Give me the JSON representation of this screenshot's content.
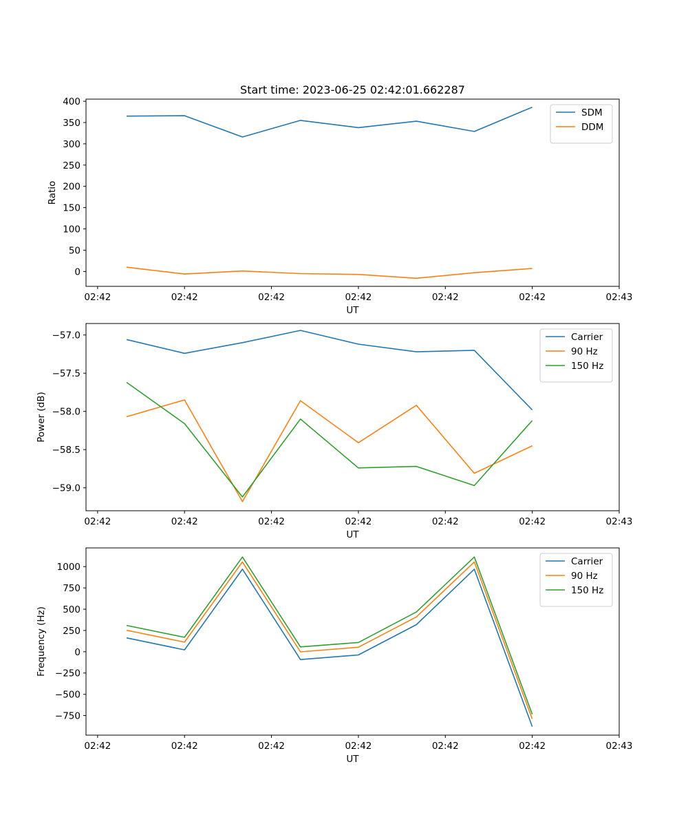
{
  "title": "Start time: 2023-06-25 02:42:01.662287",
  "colors": {
    "blue": "#1f77b4",
    "orange": "#ff7f0e",
    "green": "#2ca02c"
  },
  "chart_data": [
    {
      "type": "line",
      "ylabel": "Ratio",
      "xlabel": "UT",
      "xlim": [
        -0.2,
        9.0
      ],
      "ylim": [
        -35,
        405
      ],
      "x": [
        0.5,
        1.5,
        2.5,
        3.5,
        4.5,
        5.5,
        6.5,
        7.5
      ],
      "x_ticks": [
        0,
        1.5,
        3,
        4.5,
        6,
        7.5,
        9
      ],
      "x_tick_labels": [
        "02:42",
        "02:42",
        "02:42",
        "02:42",
        "02:42",
        "02:42",
        "02:43"
      ],
      "y_ticks": [
        0,
        50,
        100,
        150,
        200,
        250,
        300,
        350,
        400
      ],
      "y_tick_labels": [
        "0",
        "50",
        "100",
        "150",
        "200",
        "250",
        "300",
        "350",
        "400"
      ],
      "legend": "top-right",
      "series": [
        {
          "name": "SDM",
          "color": "#1f77b4",
          "values": [
            365,
            366,
            316,
            355,
            338,
            353,
            329,
            386
          ]
        },
        {
          "name": "DDM",
          "color": "#ff7f0e",
          "values": [
            10,
            -6,
            1,
            -5,
            -7,
            -16,
            -3,
            7
          ]
        }
      ]
    },
    {
      "type": "line",
      "ylabel": "Power (dB)",
      "xlabel": "UT",
      "xlim": [
        -0.2,
        9.0
      ],
      "ylim": [
        -59.3,
        -56.85
      ],
      "x": [
        0.5,
        1.5,
        2.5,
        3.5,
        4.5,
        5.5,
        6.5,
        7.5
      ],
      "x_ticks": [
        0,
        1.5,
        3,
        4.5,
        6,
        7.5,
        9
      ],
      "x_tick_labels": [
        "02:42",
        "02:42",
        "02:42",
        "02:42",
        "02:42",
        "02:42",
        "02:43"
      ],
      "y_ticks": [
        -57.0,
        -57.5,
        -58.0,
        -58.5,
        -59.0
      ],
      "y_tick_labels": [
        "−57.0",
        "−57.5",
        "−58.0",
        "−58.5",
        "−59.0"
      ],
      "legend": "top-right",
      "series": [
        {
          "name": "Carrier",
          "color": "#1f77b4",
          "values": [
            -57.06,
            -57.24,
            -57.1,
            -56.94,
            -57.12,
            -57.22,
            -57.2,
            -57.98
          ]
        },
        {
          "name": "90 Hz",
          "color": "#ff7f0e",
          "values": [
            -58.07,
            -57.85,
            -59.18,
            -57.86,
            -58.41,
            -57.92,
            -58.81,
            -58.45
          ]
        },
        {
          "name": "150 Hz",
          "color": "#2ca02c",
          "values": [
            -57.62,
            -58.16,
            -59.12,
            -58.1,
            -58.74,
            -58.72,
            -58.97,
            -58.12
          ]
        }
      ]
    },
    {
      "type": "line",
      "ylabel": "Frequency (Hz)",
      "xlabel": "UT",
      "xlim": [
        -0.2,
        9.0
      ],
      "ylim": [
        -980,
        1220
      ],
      "x": [
        0.5,
        1.5,
        2.5,
        3.5,
        4.5,
        5.5,
        6.5,
        7.5
      ],
      "x_ticks": [
        0,
        1.5,
        3,
        4.5,
        6,
        7.5,
        9
      ],
      "x_tick_labels": [
        "02:42",
        "02:42",
        "02:42",
        "02:42",
        "02:42",
        "02:42",
        "02:43"
      ],
      "y_ticks": [
        1000,
        750,
        500,
        250,
        0,
        -250,
        -500,
        -750
      ],
      "y_tick_labels": [
        "1000",
        "750",
        "500",
        "250",
        "0",
        "−250",
        "−500",
        "−750"
      ],
      "legend": "top-right",
      "series": [
        {
          "name": "Carrier",
          "color": "#1f77b4",
          "values": [
            163,
            22,
            970,
            -92,
            -38,
            318,
            970,
            -880
          ]
        },
        {
          "name": "90 Hz",
          "color": "#ff7f0e",
          "values": [
            253,
            113,
            1055,
            -1,
            53,
            409,
            1055,
            -790
          ]
        },
        {
          "name": "150 Hz",
          "color": "#2ca02c",
          "values": [
            309,
            169,
            1113,
            57,
            109,
            467,
            1113,
            -735
          ]
        }
      ]
    }
  ]
}
